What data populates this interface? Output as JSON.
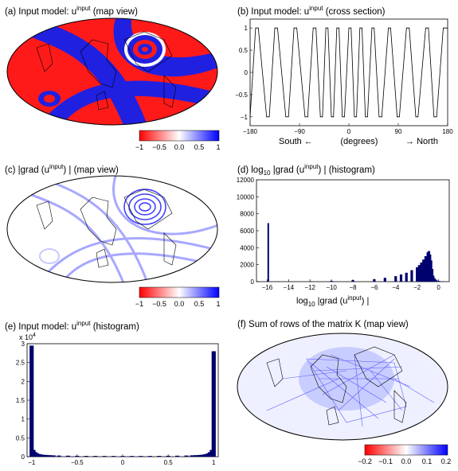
{
  "panels": {
    "a": {
      "title_prefix": "(a) Input model: u",
      "title_sup": "input",
      "title_suffix": " (map view)",
      "colorbar": {
        "ticks": [
          "−1",
          "−0.5",
          "0.0",
          "0.5",
          "1"
        ]
      }
    },
    "b": {
      "title_prefix": "(b) Input model: u",
      "title_sup": "input",
      "title_suffix": " (cross section)",
      "xlabel_left": "South ←",
      "xlabel_mid": "(degrees)",
      "xlabel_right": "→ North"
    },
    "c": {
      "title_prefix": "(c) |grad (u",
      "title_sup": "input",
      "title_suffix": ") | (map view)",
      "colorbar": {
        "ticks": [
          "−1",
          "−0.5",
          "0.0",
          "0.5",
          "1"
        ]
      }
    },
    "d": {
      "title_prefix": "(d) log",
      "title_sub": "10",
      "title_mid": " |grad (u",
      "title_sup": "input",
      "title_suffix": ") | (histogram)",
      "xlabel_prefix": "log",
      "xlabel_sub": "10",
      "xlabel_mid": " |grad (u",
      "xlabel_sup": "input",
      "xlabel_suffix": ") |"
    },
    "e": {
      "title_prefix": "(e) Input model: u",
      "title_sup": "input",
      "title_suffix": " (histogram)",
      "exponent_label": "x 10",
      "exponent_sup": "4"
    },
    "f": {
      "title": "(f) Sum of rows of the matrix K (map view)",
      "colorbar": {
        "ticks": [
          "−0.2",
          "−0.1",
          "0.0",
          "0.1",
          "0.2"
        ]
      }
    }
  },
  "chart_data": [
    {
      "id": "b",
      "type": "line",
      "xlim": [
        -180,
        180
      ],
      "ylim": [
        -1.2,
        1.2
      ],
      "xticks": [
        -180,
        -90,
        0,
        90,
        180
      ],
      "yticks": [
        -1,
        -0.5,
        0,
        0.5,
        1
      ],
      "x": [
        -180,
        -170,
        -165,
        -150,
        -145,
        -135,
        -130,
        -115,
        -110,
        -100,
        -95,
        -80,
        -75,
        -65,
        -60,
        -52,
        -48,
        -42,
        -38,
        -32,
        -28,
        -22,
        -18,
        -12,
        -8,
        0,
        4,
        10,
        14,
        20,
        24,
        30,
        34,
        42,
        46,
        55,
        60,
        72,
        76,
        88,
        92,
        105,
        110,
        122,
        126,
        140,
        145,
        155,
        160,
        172,
        180
      ],
      "y": [
        -1,
        1,
        1,
        -1,
        -1,
        1,
        1,
        -1,
        -1,
        1,
        1,
        -1,
        -1,
        1,
        1,
        -1,
        -1,
        1,
        1,
        -1,
        -1,
        1,
        1,
        -1,
        -1,
        1,
        1,
        -1,
        -1,
        1,
        1,
        -1,
        -1,
        1,
        1,
        -1,
        -1,
        1,
        1,
        -1,
        -1,
        1,
        1,
        -1,
        -1,
        1,
        1,
        -1,
        -1,
        1,
        1
      ],
      "color": "#000000"
    },
    {
      "id": "d",
      "type": "bar",
      "xlim": [
        -17,
        1
      ],
      "ylim": [
        0,
        12000
      ],
      "xticks": [
        -16,
        -14,
        -12,
        -10,
        -8,
        -6,
        -4,
        -2,
        0
      ],
      "yticks": [
        0,
        2000,
        4000,
        6000,
        8000,
        10000,
        12000
      ],
      "spike": {
        "x": -15.9,
        "value": 6900
      },
      "x": [
        -14,
        -12,
        -10,
        -8,
        -6,
        -5,
        -4,
        -3.5,
        -3,
        -2.5,
        -2,
        -1.8,
        -1.6,
        -1.4,
        -1.2,
        -1.0,
        -0.9,
        -0.8,
        -0.7,
        -0.6,
        -0.5,
        -0.4,
        -0.3,
        -0.2,
        0,
        0.2,
        0.4
      ],
      "values": [
        30,
        50,
        100,
        180,
        300,
        450,
        650,
        850,
        1050,
        1350,
        1700,
        1950,
        2250,
        2600,
        3000,
        3450,
        3600,
        3200,
        2500,
        1500,
        700,
        400,
        250,
        150,
        80,
        40,
        20
      ],
      "color": "#00006e"
    },
    {
      "id": "e",
      "type": "bar",
      "xlim": [
        -1.05,
        1.05
      ],
      "ylim": [
        0,
        3
      ],
      "xticks": [
        -1,
        -0.5,
        0,
        0.5,
        1
      ],
      "yticks": [
        0,
        0.5,
        1,
        1.5,
        2,
        2.5,
        3
      ],
      "x": [
        -1.0,
        -0.98,
        -0.96,
        -0.94,
        -0.92,
        -0.9,
        -0.87,
        -0.84,
        -0.8,
        -0.76,
        -0.7,
        -0.6,
        -0.5,
        -0.4,
        -0.3,
        -0.2,
        -0.1,
        0,
        0.1,
        0.2,
        0.3,
        0.4,
        0.5,
        0.6,
        0.7,
        0.76,
        0.8,
        0.84,
        0.87,
        0.9,
        0.92,
        0.94,
        0.96,
        0.98,
        1.0
      ],
      "values": [
        2.95,
        0.18,
        0.12,
        0.09,
        0.07,
        0.06,
        0.05,
        0.045,
        0.04,
        0.035,
        0.03,
        0.026,
        0.023,
        0.021,
        0.02,
        0.019,
        0.019,
        0.019,
        0.019,
        0.019,
        0.02,
        0.021,
        0.023,
        0.026,
        0.03,
        0.035,
        0.04,
        0.045,
        0.05,
        0.06,
        0.07,
        0.09,
        0.12,
        0.18,
        2.8
      ],
      "color": "#00006e"
    }
  ]
}
